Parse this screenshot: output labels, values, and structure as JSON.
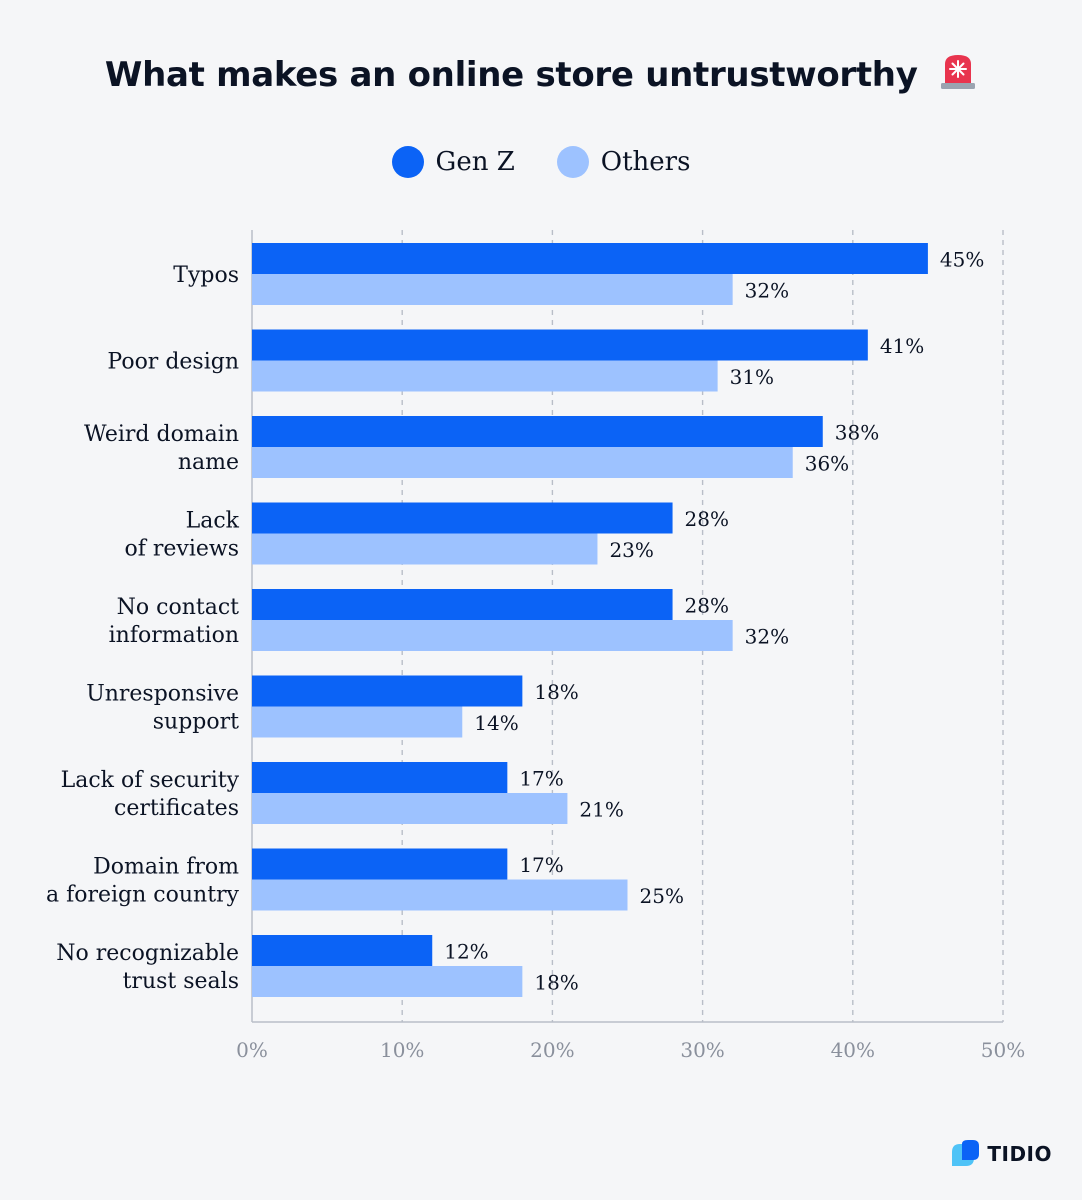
{
  "title": "What makes an online store untrustworthy",
  "title_icon": "siren-icon",
  "brand": "TIDIO",
  "colors": {
    "gen_z": "#0b63f6",
    "others": "#9dc2ff",
    "grid": "#b9bec8",
    "text": "#0b1324",
    "tick": "#8a909c"
  },
  "chart_data": {
    "type": "bar",
    "orientation": "horizontal",
    "title": "What makes an online store untrustworthy",
    "categories": [
      "Typos",
      "Poor design",
      "Weird domain name",
      "Lack of reviews",
      "No contact information",
      "Unresponsive support",
      "Lack of security certificates",
      "Domain from a foreign country",
      "No recognizable trust seals"
    ],
    "category_lines": [
      [
        "Typos"
      ],
      [
        "Poor design"
      ],
      [
        "Weird domain",
        "name"
      ],
      [
        "Lack",
        "of reviews"
      ],
      [
        "No contact",
        "information"
      ],
      [
        "Unresponsive",
        "support"
      ],
      [
        "Lack of security",
        "certificates"
      ],
      [
        "Domain from",
        "a foreign country"
      ],
      [
        "No recognizable",
        "trust seals"
      ]
    ],
    "series": [
      {
        "name": "Gen Z",
        "values": [
          45,
          41,
          38,
          28,
          28,
          18,
          17,
          17,
          12
        ],
        "color": "#0b63f6"
      },
      {
        "name": "Others",
        "values": [
          32,
          31,
          36,
          23,
          32,
          14,
          21,
          25,
          18
        ],
        "color": "#9dc2ff"
      }
    ],
    "value_suffix": "%",
    "xlim": [
      0,
      50
    ],
    "xticks": [
      0,
      10,
      20,
      30,
      40,
      50
    ],
    "xtick_labels": [
      "0%",
      "10%",
      "20%",
      "30%",
      "40%",
      "50%"
    ],
    "grid": true,
    "legend": "top-center"
  }
}
